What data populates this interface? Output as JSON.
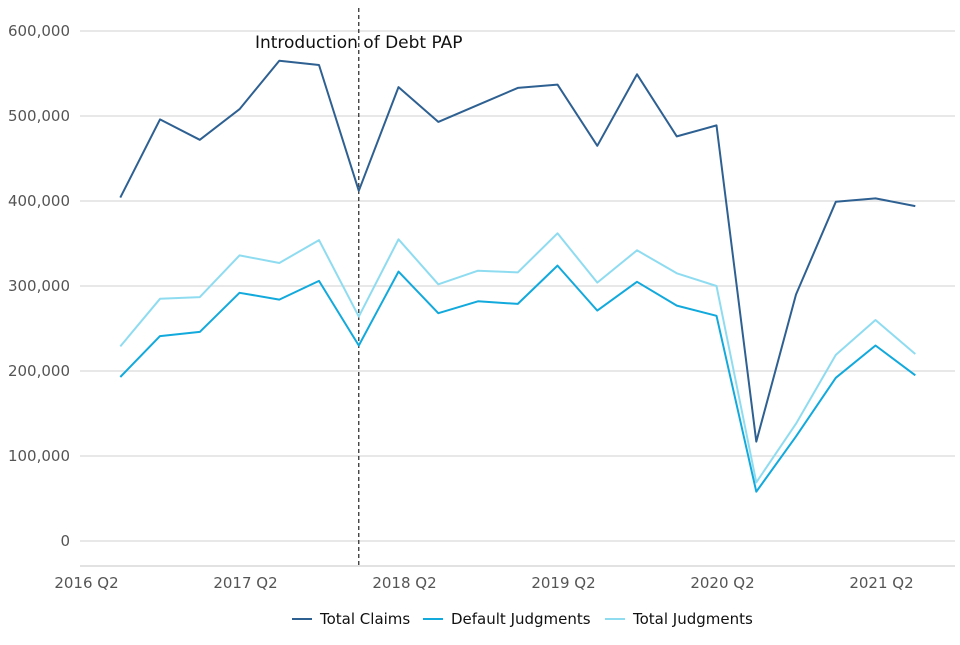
{
  "chart_data": {
    "type": "line",
    "title": "",
    "xlabel": "",
    "ylabel": "",
    "ylim": [
      0,
      600000
    ],
    "y_ticks": [
      0,
      100000,
      200000,
      300000,
      400000,
      500000,
      600000
    ],
    "y_tick_labels": [
      "0",
      "100,000",
      "200,000",
      "300,000",
      "400,000",
      "500,000",
      "600,000"
    ],
    "x_tick_labels": [
      "2016 Q2",
      "2017 Q2",
      "2018 Q2",
      "2019 Q2",
      "2020 Q2",
      "2021 Q2"
    ],
    "categories": [
      "2016 Q2",
      "2016 Q3",
      "2016 Q4",
      "2017 Q1",
      "2017 Q2",
      "2017 Q3",
      "2017 Q4",
      "2018 Q1",
      "2018 Q2",
      "2018 Q3",
      "2018 Q4",
      "2019 Q1",
      "2019 Q2",
      "2019 Q3",
      "2019 Q4",
      "2020 Q1",
      "2020 Q2",
      "2020 Q3",
      "2020 Q4",
      "2021 Q1",
      "2021 Q2",
      "2021 Q3"
    ],
    "grid": "horizontal",
    "legend_position": "bottom",
    "annotation": {
      "text": "Introduction of Debt PAP",
      "at_category": "2018 Q1"
    },
    "series": [
      {
        "name": "Total Claims",
        "color": "#2e6092",
        "values": [
          null,
          404000,
          496000,
          472000,
          508000,
          565000,
          560000,
          412000,
          534000,
          493000,
          513000,
          533000,
          537000,
          465000,
          549000,
          476000,
          489000,
          117000,
          290000,
          399000,
          403000,
          394000
        ]
      },
      {
        "name": "Default Judgments",
        "color": "#12a9dc",
        "values": [
          null,
          193000,
          241000,
          246000,
          292000,
          284000,
          306000,
          230000,
          317000,
          268000,
          282000,
          279000,
          324000,
          271000,
          305000,
          277000,
          265000,
          58000,
          123000,
          192000,
          230000,
          195000
        ]
      },
      {
        "name": "Total Judgments",
        "color": "#8fdcf1",
        "values": [
          null,
          229000,
          285000,
          287000,
          336000,
          327000,
          354000,
          264000,
          355000,
          302000,
          318000,
          316000,
          362000,
          304000,
          342000,
          315000,
          300000,
          69000,
          138000,
          219000,
          260000,
          220000
        ]
      }
    ]
  }
}
